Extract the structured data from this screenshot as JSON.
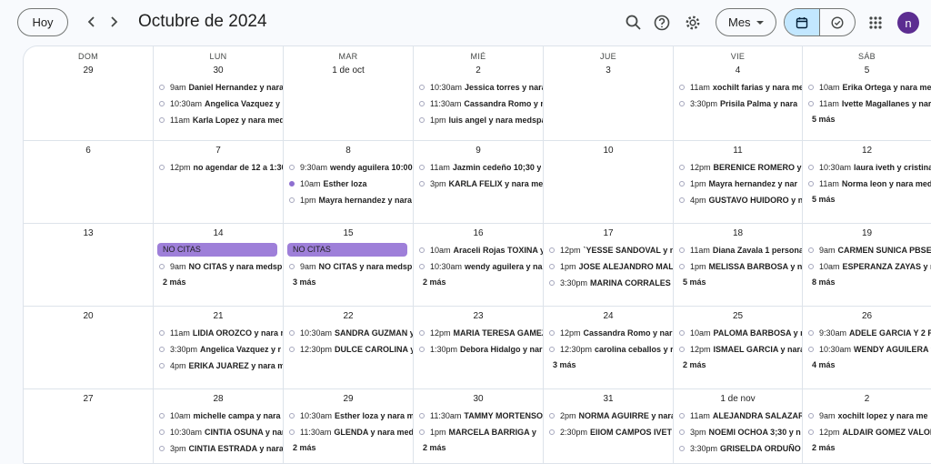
{
  "header": {
    "today_label": "Hoy",
    "title": "Octubre de 2024",
    "view_label": "Mes",
    "avatar_initial": "n"
  },
  "weekdays": [
    "DOM",
    "LUN",
    "MAR",
    "MIÉ",
    "JUE",
    "VIE",
    "SÁB"
  ],
  "weeks": [
    [
      {
        "day": "29",
        "events": []
      },
      {
        "day": "30",
        "events": [
          {
            "time": "9am",
            "title": "Daniel Hernandez y nara"
          },
          {
            "time": "10:30am",
            "title": "Angelica Vazquez y"
          },
          {
            "time": "11am",
            "title": "Karla Lopez y nara med"
          }
        ]
      },
      {
        "day": "1 de oct",
        "events": []
      },
      {
        "day": "2",
        "events": [
          {
            "time": "10:30am",
            "title": "Jessica torres y nara"
          },
          {
            "time": "11:30am",
            "title": "Cassandra Romo y n"
          },
          {
            "time": "1pm",
            "title": "luis angel y nara medspa"
          }
        ]
      },
      {
        "day": "3",
        "events": []
      },
      {
        "day": "4",
        "events": [
          {
            "time": "11am",
            "title": "xochilt farias y nara me"
          },
          {
            "time": "3:30pm",
            "title": "Prisila Palma y nara"
          }
        ]
      },
      {
        "day": "5",
        "events": [
          {
            "time": "10am",
            "title": "Erika Ortega y nara me"
          },
          {
            "time": "11am",
            "title": "Ivette Magallanes y nar"
          }
        ],
        "more": "5 más"
      }
    ],
    [
      {
        "day": "6",
        "events": []
      },
      {
        "day": "7",
        "events": [
          {
            "time": "12pm",
            "title": "no agendar de 12 a 1:30"
          }
        ]
      },
      {
        "day": "8",
        "events": [
          {
            "time": "9:30am",
            "title": "wendy aguilera 10:00"
          },
          {
            "time": "10am",
            "title": "Esther loza",
            "filled": true
          },
          {
            "time": "1pm",
            "title": "Mayra hernandez y nara"
          }
        ]
      },
      {
        "day": "9",
        "events": [
          {
            "time": "11am",
            "title": "Jazmin cedeño 10;30 y"
          },
          {
            "time": "3pm",
            "title": "KARLA FELIX y nara me"
          }
        ]
      },
      {
        "day": "10",
        "events": []
      },
      {
        "day": "11",
        "events": [
          {
            "time": "12pm",
            "title": "BERENICE ROMERO y n"
          },
          {
            "time": "1pm",
            "title": "Mayra hernandez y nar"
          },
          {
            "time": "4pm",
            "title": "GUSTAVO HUIDORO y n"
          }
        ]
      },
      {
        "day": "12",
        "events": [
          {
            "time": "10:30am",
            "title": "laura iveth y cristina"
          },
          {
            "time": "11am",
            "title": "Norma leon y nara med"
          }
        ],
        "more": "5 más"
      }
    ],
    [
      {
        "day": "13",
        "events": []
      },
      {
        "day": "14",
        "allday": "NO CITAS",
        "events": [
          {
            "time": "9am",
            "title": "NO CITAS y nara medsp"
          }
        ],
        "more": "2 más"
      },
      {
        "day": "15",
        "allday": "NO CITAS",
        "events": [
          {
            "time": "9am",
            "title": "NO CITAS y nara medsp"
          }
        ],
        "more": "3 más"
      },
      {
        "day": "16",
        "events": [
          {
            "time": "10am",
            "title": "Araceli Rojas TOXINA y"
          },
          {
            "time": "10:30am",
            "title": "wendy aguilera y nara"
          }
        ],
        "more": "2 más"
      },
      {
        "day": "17",
        "events": [
          {
            "time": "12pm",
            "title": "`YESSE SANDOVAL y n"
          },
          {
            "time": "1pm",
            "title": "JOSE ALEJANDRO MALI"
          },
          {
            "time": "3:30pm",
            "title": "MARINA CORRALES"
          }
        ]
      },
      {
        "day": "18",
        "events": [
          {
            "time": "11am",
            "title": "Diana Zavala 1 persona"
          },
          {
            "time": "1pm",
            "title": "MELISSA BARBOSA y na"
          }
        ],
        "more": "5 más"
      },
      {
        "day": "19",
        "events": [
          {
            "time": "9am",
            "title": "CARMEN SUNICA PBSEU"
          },
          {
            "time": "10am",
            "title": "ESPERANZA ZAYAS y n"
          }
        ],
        "more": "8 más"
      }
    ],
    [
      {
        "day": "20",
        "events": []
      },
      {
        "day": "21",
        "events": [
          {
            "time": "11am",
            "title": "LIDIA OROZCO y nara n"
          },
          {
            "time": "3:30pm",
            "title": "Angelica Vazquez y r"
          },
          {
            "time": "4pm",
            "title": "ERIKA JUAREZ y nara m"
          }
        ]
      },
      {
        "day": "22",
        "events": [
          {
            "time": "10:30am",
            "title": "SANDRA GUZMAN y"
          },
          {
            "time": "12:30pm",
            "title": "DULCE CAROLINA y"
          }
        ]
      },
      {
        "day": "23",
        "events": [
          {
            "time": "12pm",
            "title": "MARIA TERESA GAMEZ"
          },
          {
            "time": "1:30pm",
            "title": "Debora Hidalgo y nar"
          }
        ]
      },
      {
        "day": "24",
        "events": [
          {
            "time": "12pm",
            "title": "Cassandra Romo y nar"
          },
          {
            "time": "12:30pm",
            "title": "carolina ceballos y r"
          }
        ],
        "more": "3 más"
      },
      {
        "day": "25",
        "events": [
          {
            "time": "10am",
            "title": "PALOMA BARBOSA y n"
          },
          {
            "time": "12pm",
            "title": "ISMAEL GARCIA y nara"
          }
        ],
        "more": "2 más"
      },
      {
        "day": "26",
        "events": [
          {
            "time": "9:30am",
            "title": "ADELE GARCIA Y 2 P"
          },
          {
            "time": "10:30am",
            "title": "WENDY AGUILERA y"
          }
        ],
        "more": "4 más"
      }
    ],
    [
      {
        "day": "27",
        "events": []
      },
      {
        "day": "28",
        "events": [
          {
            "time": "10am",
            "title": "michelle campa y nara"
          },
          {
            "time": "10:30am",
            "title": "CINTIA OSUNA y nara"
          },
          {
            "time": "3pm",
            "title": "CINTIA ESTRADA y nara"
          }
        ]
      },
      {
        "day": "29",
        "events": [
          {
            "time": "10:30am",
            "title": "Esther loza y nara m"
          },
          {
            "time": "11:30am",
            "title": "GLENDA y nara med"
          }
        ],
        "more": "2 más"
      },
      {
        "day": "30",
        "events": [
          {
            "time": "11:30am",
            "title": "TAMMY MORTENSO"
          },
          {
            "time": "1pm",
            "title": "MARCELA BARRIGA y"
          }
        ],
        "more": "2 más"
      },
      {
        "day": "31",
        "events": [
          {
            "time": "2pm",
            "title": "NORMA AGUIRRE y nara"
          },
          {
            "time": "2:30pm",
            "title": "ElIOM CAMPOS IVET"
          }
        ]
      },
      {
        "day": "1 de nov",
        "events": [
          {
            "time": "11am",
            "title": "ALEJANDRA SALAZAR"
          },
          {
            "time": "3pm",
            "title": "NOEMI OCHOA 3;30 y n"
          },
          {
            "time": "3:30pm",
            "title": "GRISELDA ORDUÑO"
          }
        ]
      },
      {
        "day": "2",
        "events": [
          {
            "time": "9am",
            "title": "xochilt lopez y nara me"
          },
          {
            "time": "12pm",
            "title": "ALDAIR GOMEZ VALOR"
          }
        ],
        "more": "2 más"
      }
    ]
  ]
}
